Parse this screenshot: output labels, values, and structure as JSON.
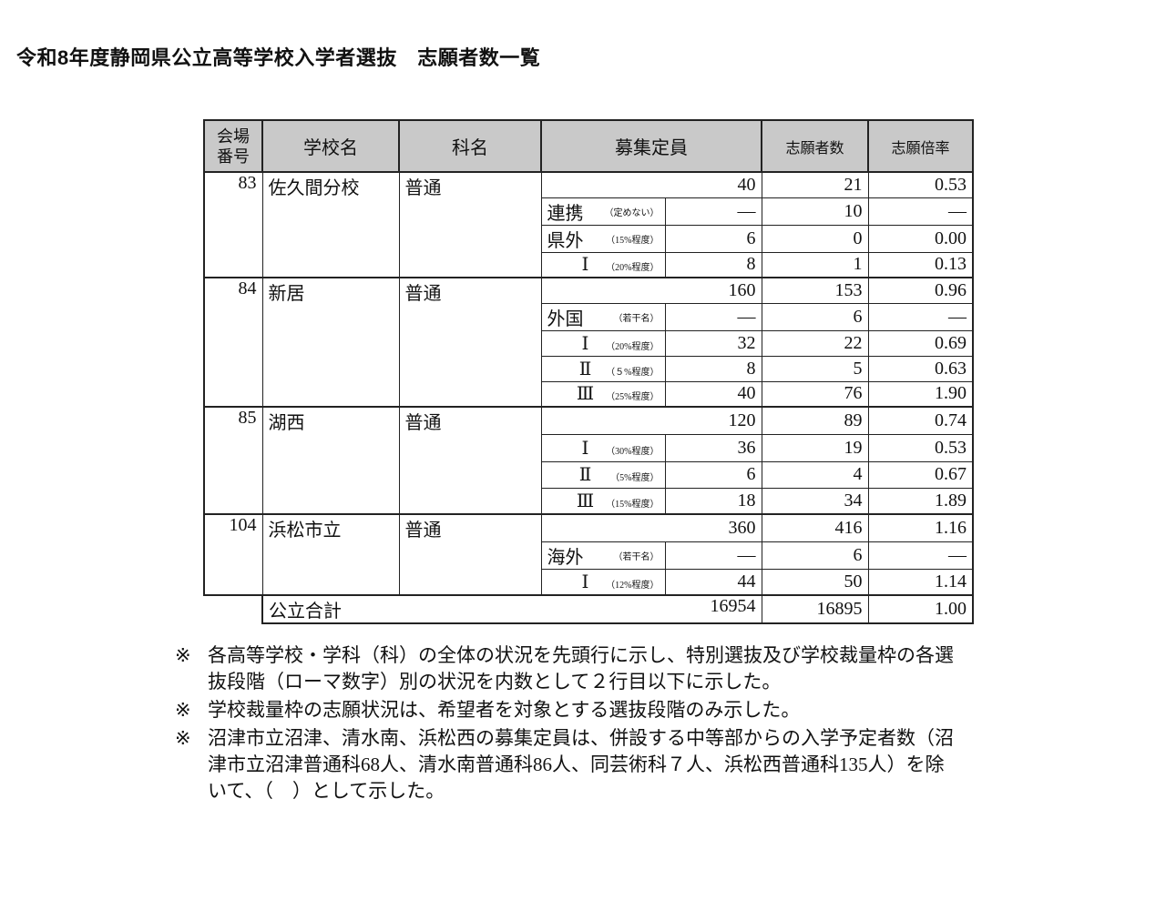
{
  "title": "令和8年度静岡県公立高等学校入学者選抜　志願者数一覧",
  "table": {
    "headers": {
      "venue": "会場番号",
      "venue_l1": "会場",
      "venue_l2": "番号",
      "school": "学校名",
      "course": "科名",
      "capacity": "募集定員",
      "applicants": "志願者数",
      "ratio": "志願倍率"
    },
    "schools": [
      {
        "no": "83",
        "name": "佐久間分校",
        "course": "普通",
        "capacity": "40",
        "applicants": "21",
        "ratio": "0.53",
        "subs": [
          {
            "label": "連携",
            "note": "（定めない）",
            "capacity": "―",
            "applicants": "10",
            "ratio": "―"
          },
          {
            "label": "県外",
            "note": "（15%程度）",
            "capacity": "6",
            "applicants": "0",
            "ratio": "0.00"
          },
          {
            "label": "Ⅰ",
            "note": "（20%程度）",
            "capacity": "8",
            "applicants": "1",
            "ratio": "0.13"
          }
        ]
      },
      {
        "no": "84",
        "name": "新居",
        "course": "普通",
        "capacity": "160",
        "applicants": "153",
        "ratio": "0.96",
        "subs": [
          {
            "label": "外国",
            "note": "（若干名）",
            "capacity": "―",
            "applicants": "6",
            "ratio": "―"
          },
          {
            "label": "Ⅰ",
            "note": "（20%程度）",
            "capacity": "32",
            "applicants": "22",
            "ratio": "0.69"
          },
          {
            "label": "Ⅱ",
            "note": "（５%程度）",
            "capacity": "8",
            "applicants": "5",
            "ratio": "0.63"
          },
          {
            "label": "Ⅲ",
            "note": "（25%程度）",
            "capacity": "40",
            "applicants": "76",
            "ratio": "1.90"
          }
        ]
      },
      {
        "no": "85",
        "name": "湖西",
        "course": "普通",
        "capacity": "120",
        "applicants": "89",
        "ratio": "0.74",
        "subs": [
          {
            "label": "Ⅰ",
            "note": "（30%程度）",
            "capacity": "36",
            "applicants": "19",
            "ratio": "0.53"
          },
          {
            "label": "Ⅱ",
            "note": "（5%程度）",
            "capacity": "6",
            "applicants": "4",
            "ratio": "0.67"
          },
          {
            "label": "Ⅲ",
            "note": "（15%程度）",
            "capacity": "18",
            "applicants": "34",
            "ratio": "1.89"
          }
        ]
      },
      {
        "no": "104",
        "name": "浜松市立",
        "course": "普通",
        "capacity": "360",
        "applicants": "416",
        "ratio": "1.16",
        "subs": [
          {
            "label": "海外",
            "note": "（若干名）",
            "capacity": "―",
            "applicants": "6",
            "ratio": "―"
          },
          {
            "label": "Ⅰ",
            "note": "（12%程度）",
            "capacity": "44",
            "applicants": "50",
            "ratio": "1.14"
          }
        ]
      }
    ],
    "total": {
      "label": "公立合計",
      "capacity": "16954",
      "applicants": "16895",
      "ratio": "1.00"
    }
  },
  "notes": [
    {
      "mark": "※",
      "text": "各高等学校・学科（科）の全体の状況を先頭行に示し、特別選抜及び学校裁量枠の各選抜段階（ローマ数字）別の状況を内数として２行目以下に示した。"
    },
    {
      "mark": "※",
      "text": "学校裁量枠の志願状況は、希望者を対象とする選抜段階のみ示した。"
    },
    {
      "mark": "※",
      "text": "沼津市立沼津、清水南、浜松西の募集定員は、併設する中等部からの入学予定者数（沼津市立沼津普通科68人、清水南普通科86人、同芸術科７人、浜松西普通科135人）を除いて、（　）として示した。"
    }
  ]
}
